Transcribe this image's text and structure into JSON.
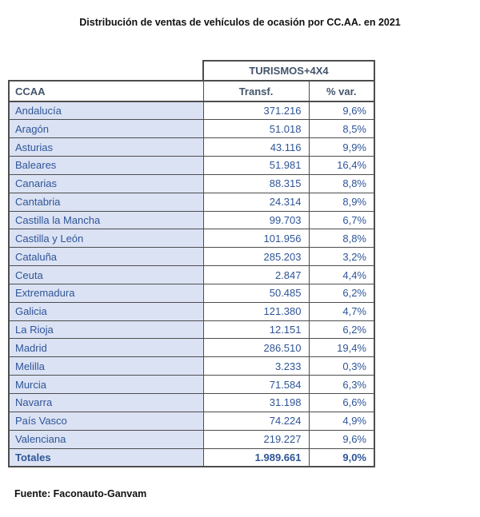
{
  "title": "Distribución de ventas de vehículos de ocasión por CC.AA. en 2021",
  "source": "Fuente: Faconauto-Ganvam",
  "table": {
    "group_header": "TURISMOS+4X4",
    "columns": {
      "ccaa": "CCAA",
      "transf": "Transf.",
      "var": "% var."
    },
    "rows": [
      {
        "ccaa": "Andalucía",
        "transf": "371.216",
        "var": "9,6%"
      },
      {
        "ccaa": "Aragón",
        "transf": "51.018",
        "var": "8,5%"
      },
      {
        "ccaa": "Asturias",
        "transf": "43.116",
        "var": "9,9%"
      },
      {
        "ccaa": "Baleares",
        "transf": "51.981",
        "var": "16,4%"
      },
      {
        "ccaa": "Canarias",
        "transf": "88.315",
        "var": "8,8%"
      },
      {
        "ccaa": "Cantabria",
        "transf": "24.314",
        "var": "8,9%"
      },
      {
        "ccaa": "Castilla la Mancha",
        "transf": "99.703",
        "var": "6,7%"
      },
      {
        "ccaa": "Castilla y León",
        "transf": "101.956",
        "var": "8,8%"
      },
      {
        "ccaa": "Cataluña",
        "transf": "285.203",
        "var": "3,2%"
      },
      {
        "ccaa": "Ceuta",
        "transf": "2.847",
        "var": "4,4%"
      },
      {
        "ccaa": "Extremadura",
        "transf": "50.485",
        "var": "6,2%"
      },
      {
        "ccaa": "Galicia",
        "transf": "121.380",
        "var": "4,7%"
      },
      {
        "ccaa": "La Rioja",
        "transf": "12.151",
        "var": "6,2%"
      },
      {
        "ccaa": "Madrid",
        "transf": "286.510",
        "var": "19,4%"
      },
      {
        "ccaa": "Melilla",
        "transf": "3.233",
        "var": "0,3%"
      },
      {
        "ccaa": "Murcia",
        "transf": "71.584",
        "var": "6,3%"
      },
      {
        "ccaa": "Navarra",
        "transf": "31.198",
        "var": "6,6%"
      },
      {
        "ccaa": "País Vasco",
        "transf": "74.224",
        "var": "4,9%"
      },
      {
        "ccaa": "Valenciana",
        "transf": "219.227",
        "var": "9,6%"
      }
    ],
    "totals": {
      "ccaa": "Totales",
      "transf": "1.989.661",
      "var": "9,0%"
    }
  },
  "colors": {
    "row_band": "#dbe2f4",
    "data_text": "#2f5597",
    "header_text": "#44546a",
    "border": "#4d4d4d",
    "title_text": "#111111"
  }
}
